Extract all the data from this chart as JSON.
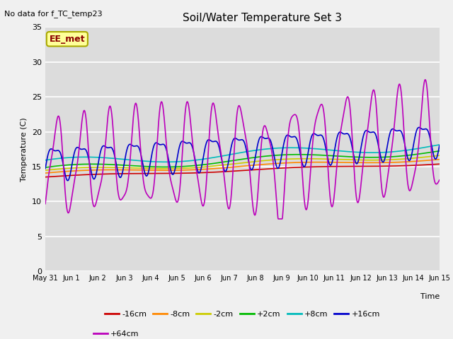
{
  "title": "Soil/Water Temperature Set 3",
  "xlabel": "Time",
  "ylabel": "Temperature (C)",
  "no_data_text": "No data for f_TC_temp23",
  "legend_label_text": "EE_met",
  "ylim": [
    0,
    35
  ],
  "yticks": [
    0,
    5,
    10,
    15,
    20,
    25,
    30,
    35
  ],
  "plot_bg_color": "#dcdcdc",
  "fig_bg_color": "#f0f0f0",
  "grid_color": "#ffffff",
  "series_colors": {
    "neg16cm": "#cc0000",
    "neg8cm": "#ff8800",
    "neg2cm": "#cccc00",
    "pos2cm": "#00bb00",
    "pos8cm": "#00bbbb",
    "pos16cm": "#0000cc",
    "pos64cm": "#bb00bb"
  },
  "series_labels": {
    "neg16cm": "-16cm",
    "neg8cm": "-8cm",
    "neg2cm": "-2cm",
    "pos2cm": "+2cm",
    "pos8cm": "+8cm",
    "pos16cm": "+16cm",
    "pos64cm": "+64cm"
  },
  "xtick_labels": [
    "May 31",
    "Jun 1",
    "Jun 2",
    "Jun 3",
    "Jun 4",
    "Jun 5",
    "Jun 6",
    "Jun 7",
    "Jun 8",
    "Jun 9",
    "Jun 10",
    "Jun 11",
    "Jun 12",
    "Jun 13",
    "Jun 14",
    "Jun 15"
  ],
  "xtick_positions": [
    0,
    1,
    2,
    3,
    4,
    5,
    6,
    7,
    8,
    9,
    10,
    11,
    12,
    13,
    14,
    15
  ],
  "xlim": [
    0,
    15
  ],
  "figsize": [
    6.4,
    4.8
  ],
  "dpi": 100
}
